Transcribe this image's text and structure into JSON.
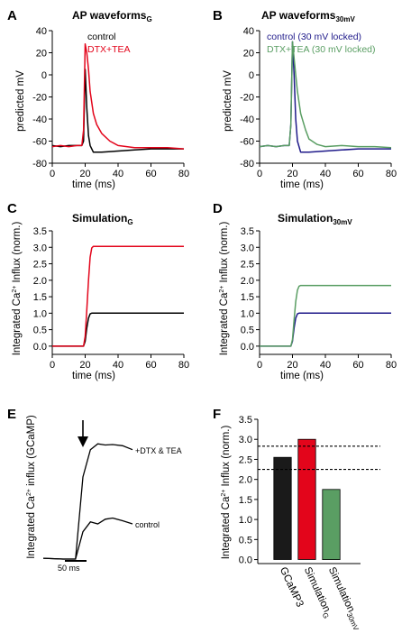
{
  "chart_data": [
    {
      "id": "A",
      "type": "line",
      "panel_letter": "A",
      "title": "AP waveforms",
      "title_sub": "G",
      "xlabel": "time (ms)",
      "ylabel": "predicted mV",
      "xlim": [
        0,
        80
      ],
      "ylim": [
        -80,
        40
      ],
      "xticks": [
        "0",
        "20",
        "40",
        "60",
        "80"
      ],
      "yticks": [
        "-80",
        "-60",
        "-40",
        "-20",
        "0",
        "20",
        "40"
      ],
      "legend": {
        "placement": "top-right"
      },
      "series": [
        {
          "name": "control",
          "color": "#000000",
          "x": [
            0,
            5,
            10,
            15,
            18,
            19,
            20,
            21,
            22,
            23,
            25,
            30,
            40,
            50,
            60,
            70,
            80
          ],
          "values": [
            -64,
            -65,
            -64,
            -64,
            -64,
            -60,
            5,
            -30,
            -55,
            -64,
            -70,
            -70,
            -69,
            -68,
            -67,
            -67,
            -67
          ]
        },
        {
          "name": "DTX+TEA",
          "color": "#e3051b",
          "x": [
            0,
            5,
            10,
            15,
            18,
            19,
            20,
            21,
            22,
            23,
            25,
            27,
            30,
            35,
            40,
            50,
            60,
            70,
            80
          ],
          "values": [
            -65,
            -64,
            -65,
            -64,
            -64,
            -50,
            28,
            20,
            5,
            -15,
            -35,
            -45,
            -53,
            -60,
            -64,
            -66,
            -66,
            -66,
            -67
          ]
        }
      ]
    },
    {
      "id": "B",
      "type": "line",
      "panel_letter": "B",
      "title": "AP waveforms",
      "title_sub": "30mV",
      "xlabel": "time (ms)",
      "ylabel": "predicted mV",
      "xlim": [
        0,
        80
      ],
      "ylim": [
        -80,
        40
      ],
      "xticks": [
        "0",
        "20",
        "40",
        "60",
        "80"
      ],
      "yticks": [
        "-80",
        "-60",
        "-40",
        "-20",
        "0",
        "20",
        "40"
      ],
      "legend": {
        "placement": "top-right"
      },
      "series": [
        {
          "name": "control (30 mV locked)",
          "color": "#1f1a8a",
          "x": [
            0,
            5,
            10,
            15,
            18,
            19,
            20,
            21,
            22,
            23,
            25,
            30,
            40,
            50,
            60,
            70,
            80
          ],
          "values": [
            -65,
            -64,
            -65,
            -64,
            -64,
            -45,
            30,
            0,
            -40,
            -60,
            -70,
            -70,
            -69,
            -68,
            -67,
            -67,
            -67
          ]
        },
        {
          "name": "DTX+TEA (30 mV locked)",
          "color": "#5a9e63",
          "x": [
            0,
            5,
            10,
            15,
            18,
            19,
            20,
            21,
            22,
            23,
            25,
            28,
            30,
            35,
            40,
            50,
            60,
            70,
            80
          ],
          "values": [
            -65,
            -64,
            -65,
            -64,
            -64,
            -45,
            30,
            15,
            0,
            -15,
            -35,
            -50,
            -58,
            -63,
            -65,
            -64,
            -65,
            -65,
            -66
          ]
        }
      ]
    },
    {
      "id": "C",
      "type": "line",
      "panel_letter": "C",
      "title": "Simulation",
      "title_sub": "G",
      "xlabel": "time (ms)",
      "ylabel": "Integrated Ca",
      "ylabel_sup": "2+",
      "ylabel_tail": " Influx (norm.)",
      "xlim": [
        0,
        80
      ],
      "ylim": [
        -0.25,
        3.5
      ],
      "xticks": [
        "0",
        "20",
        "40",
        "60",
        "80"
      ],
      "yticks": [
        "0.0",
        "0.5",
        "1.0",
        "1.5",
        "2.0",
        "2.5",
        "3.0",
        "3.5"
      ],
      "series": [
        {
          "color": "#000000",
          "x": [
            0,
            19,
            20,
            21,
            22,
            23,
            24,
            80
          ],
          "values": [
            0,
            0,
            0.15,
            0.55,
            0.85,
            0.98,
            1.0,
            1.0
          ]
        },
        {
          "color": "#e3051b",
          "x": [
            0,
            19,
            20,
            21,
            22,
            23,
            24,
            25,
            80
          ],
          "values": [
            0,
            0,
            0.3,
            1.1,
            2.0,
            2.7,
            2.98,
            3.03,
            3.03
          ]
        }
      ]
    },
    {
      "id": "D",
      "type": "line",
      "panel_letter": "D",
      "title": "Simulation",
      "title_sub": "30mV",
      "xlabel": "time (ms)",
      "ylabel": "Integrated Ca",
      "ylabel_sup": "2+",
      "ylabel_tail": " Influx (norm.)",
      "xlim": [
        0,
        80
      ],
      "ylim": [
        -0.25,
        3.5
      ],
      "xticks": [
        "0",
        "20",
        "40",
        "60",
        "80"
      ],
      "yticks": [
        "0.0",
        "0.5",
        "1.0",
        "1.5",
        "2.0",
        "2.5",
        "3.0",
        "3.5"
      ],
      "series": [
        {
          "color": "#1f1a8a",
          "x": [
            0,
            19,
            20,
            21,
            22,
            23,
            24,
            80
          ],
          "values": [
            0,
            0,
            0.15,
            0.55,
            0.85,
            0.98,
            1.0,
            1.0
          ]
        },
        {
          "color": "#5a9e63",
          "x": [
            0,
            19,
            20,
            21,
            22,
            23,
            24,
            25,
            80
          ],
          "values": [
            0,
            0,
            0.2,
            0.8,
            1.35,
            1.7,
            1.82,
            1.84,
            1.84
          ]
        }
      ]
    },
    {
      "id": "E",
      "type": "line",
      "panel_letter": "E",
      "ylabel": "Integrated Ca",
      "ylabel_sup": "2+",
      "ylabel_tail": " influx (GCaMP)",
      "scalebar_label": "50 ms",
      "series": [
        {
          "name": "+DTX & TEA",
          "color": "#000000",
          "x": [
            0,
            40,
            65,
            80,
            95,
            110,
            125,
            140,
            160,
            180
          ],
          "values": [
            0.02,
            0.0,
            0.0,
            2.1,
            2.8,
            2.95,
            2.92,
            2.93,
            2.9,
            2.8
          ]
        },
        {
          "name": "control",
          "color": "#000000",
          "x": [
            0,
            40,
            65,
            80,
            95,
            110,
            125,
            140,
            160,
            180
          ],
          "values": [
            0.02,
            0.0,
            0.0,
            0.7,
            0.95,
            0.9,
            1.02,
            1.05,
            0.98,
            0.9
          ]
        }
      ]
    },
    {
      "id": "F",
      "type": "bar",
      "panel_letter": "F",
      "ylabel": "Integrated Ca",
      "ylabel_sup": "2+",
      "ylabel_tail": " Influx (norm.)",
      "ylim": [
        -0.1,
        3.5
      ],
      "yticks": [
        "0.0",
        "0.5",
        "1.0",
        "1.5",
        "2.0",
        "2.5",
        "3.0",
        "3.5"
      ],
      "categories": [
        "GCaMP3",
        "Simulation",
        "Simulation"
      ],
      "category_subs": [
        "",
        "G",
        "30mV"
      ],
      "values": [
        2.55,
        3.0,
        1.75
      ],
      "colors": [
        "#1a1a1a",
        "#e3051b",
        "#5a9e63"
      ],
      "reference_lines": [
        2.83,
        2.25
      ]
    }
  ]
}
